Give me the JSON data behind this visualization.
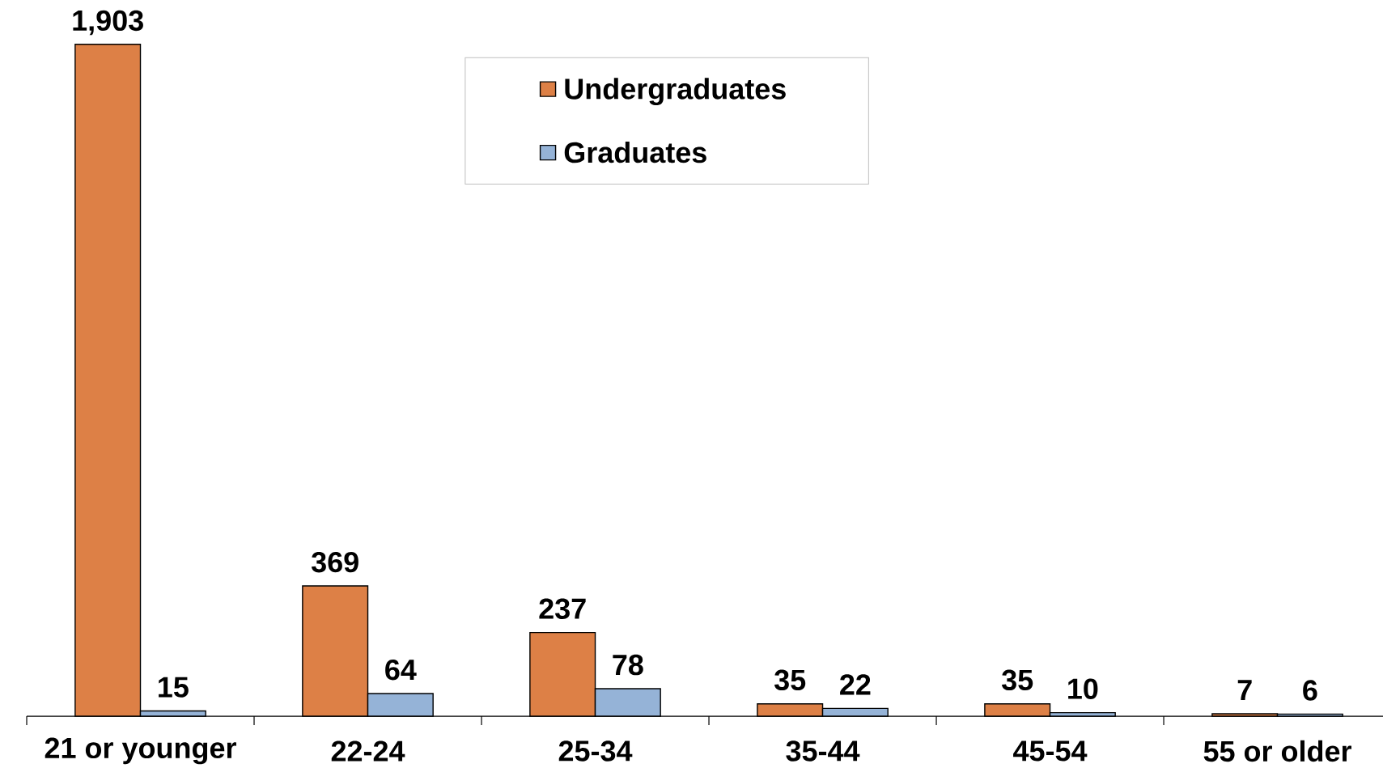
{
  "chart_data": {
    "type": "bar",
    "categories": [
      "21 or younger",
      "22-24",
      "25-34",
      "35-44",
      "45-54",
      "55 or older"
    ],
    "series": [
      {
        "name": "Undergraduates",
        "color": "#dd8046",
        "values": [
          1903,
          369,
          237,
          35,
          35,
          7
        ],
        "value_labels": [
          "1,903",
          "369",
          "237",
          "35",
          "35",
          "7"
        ]
      },
      {
        "name": "Graduates",
        "color": "#95b3d7",
        "values": [
          15,
          64,
          78,
          22,
          10,
          6
        ],
        "value_labels": [
          "15",
          "64",
          "78",
          "22",
          "10",
          "6"
        ]
      }
    ],
    "legend": "top"
  }
}
